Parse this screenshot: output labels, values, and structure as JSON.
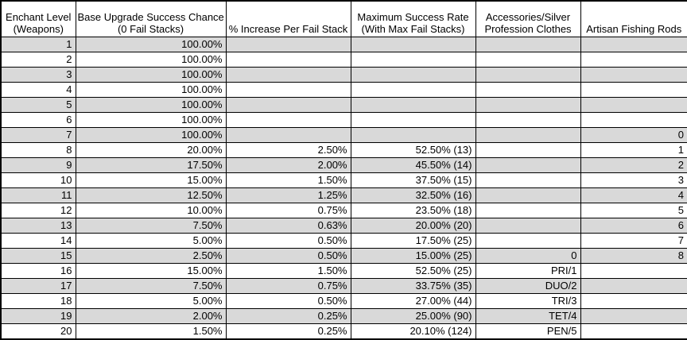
{
  "table": {
    "title": "Enchant success chance table",
    "column_ids": [
      "enchant-level",
      "base-chance",
      "increase-per-stack",
      "max-success-rate",
      "accessories-silver-clothes",
      "artisan-fishing-rods"
    ],
    "columns": [
      {
        "line1": "Enchant Level",
        "line2": "(Weapons)"
      },
      {
        "line1": "Base Upgrade Success Chance",
        "line2": "(0 Fail Stacks)"
      },
      {
        "line1": "",
        "line2": "% Increase Per Fail Stack"
      },
      {
        "line1": "Maximum Success Rate",
        "line2": "(With Max Fail Stacks)"
      },
      {
        "line1": "Accessories/Silver",
        "line2": "Profession Clothes"
      },
      {
        "line1": "",
        "line2": "Artisan Fishing Rods"
      }
    ],
    "rows": [
      [
        "1",
        "100.00%",
        "",
        "",
        "",
        ""
      ],
      [
        "2",
        "100.00%",
        "",
        "",
        "",
        ""
      ],
      [
        "3",
        "100.00%",
        "",
        "",
        "",
        ""
      ],
      [
        "4",
        "100.00%",
        "",
        "",
        "",
        ""
      ],
      [
        "5",
        "100.00%",
        "",
        "",
        "",
        ""
      ],
      [
        "6",
        "100.00%",
        "",
        "",
        "",
        ""
      ],
      [
        "7",
        "100.00%",
        "",
        "",
        "",
        "0"
      ],
      [
        "8",
        "20.00%",
        "2.50%",
        "52.50% (13)",
        "",
        "1"
      ],
      [
        "9",
        "17.50%",
        "2.00%",
        "45.50% (14)",
        "",
        "2"
      ],
      [
        "10",
        "15.00%",
        "1.50%",
        "37.50% (15)",
        "",
        "3"
      ],
      [
        "11",
        "12.50%",
        "1.25%",
        "32.50% (16)",
        "",
        "4"
      ],
      [
        "12",
        "10.00%",
        "0.75%",
        "23.50% (18)",
        "",
        "5"
      ],
      [
        "13",
        "7.50%",
        "0.63%",
        "20.00% (20)",
        "",
        "6"
      ],
      [
        "14",
        "5.00%",
        "0.50%",
        "17.50% (25)",
        "",
        "7"
      ],
      [
        "15",
        "2.50%",
        "0.50%",
        "15.00% (25)",
        "0",
        "8"
      ],
      [
        "16",
        "15.00%",
        "1.50%",
        "52.50% (25)",
        "PRI/1",
        ""
      ],
      [
        "17",
        "7.50%",
        "0.75%",
        "33.75% (35)",
        "DUO/2",
        ""
      ],
      [
        "18",
        "5.00%",
        "0.50%",
        "27.00% (44)",
        "TRI/3",
        ""
      ],
      [
        "19",
        "2.00%",
        "0.25%",
        "25.00% (90)",
        "TET/4",
        ""
      ],
      [
        "20",
        "1.50%",
        "0.25%",
        "20.10% (124)",
        "PEN/5",
        ""
      ]
    ],
    "stripe_pattern": "odd-rows-grey"
  },
  "colors": {
    "stripe_fill": "#d9d9d9",
    "row_fill": "#ffffff",
    "grid_border": "#000000",
    "text": "#000000"
  }
}
